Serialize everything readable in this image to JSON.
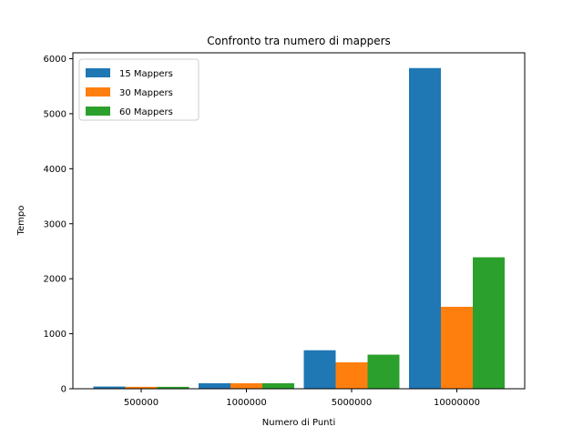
{
  "chart_data": {
    "type": "bar",
    "title": "Confronto tra numero di mappers",
    "xlabel": "Numero di Punti",
    "ylabel": "Tempo",
    "categories": [
      "500000",
      "1000000",
      "5000000",
      "10000000"
    ],
    "series": [
      {
        "name": "15 Mappers",
        "color": "#1f77b4",
        "values": [
          40,
          100,
          700,
          5830
        ]
      },
      {
        "name": "30 Mappers",
        "color": "#ff7f0e",
        "values": [
          35,
          100,
          480,
          1490
        ]
      },
      {
        "name": "60 Mappers",
        "color": "#2ca02c",
        "values": [
          35,
          100,
          620,
          2390
        ]
      }
    ],
    "ylim": [
      0,
      6000
    ],
    "yticks": [
      0,
      1000,
      2000,
      3000,
      4000,
      5000,
      6000
    ],
    "grid": false,
    "legend_position": "top-left"
  }
}
